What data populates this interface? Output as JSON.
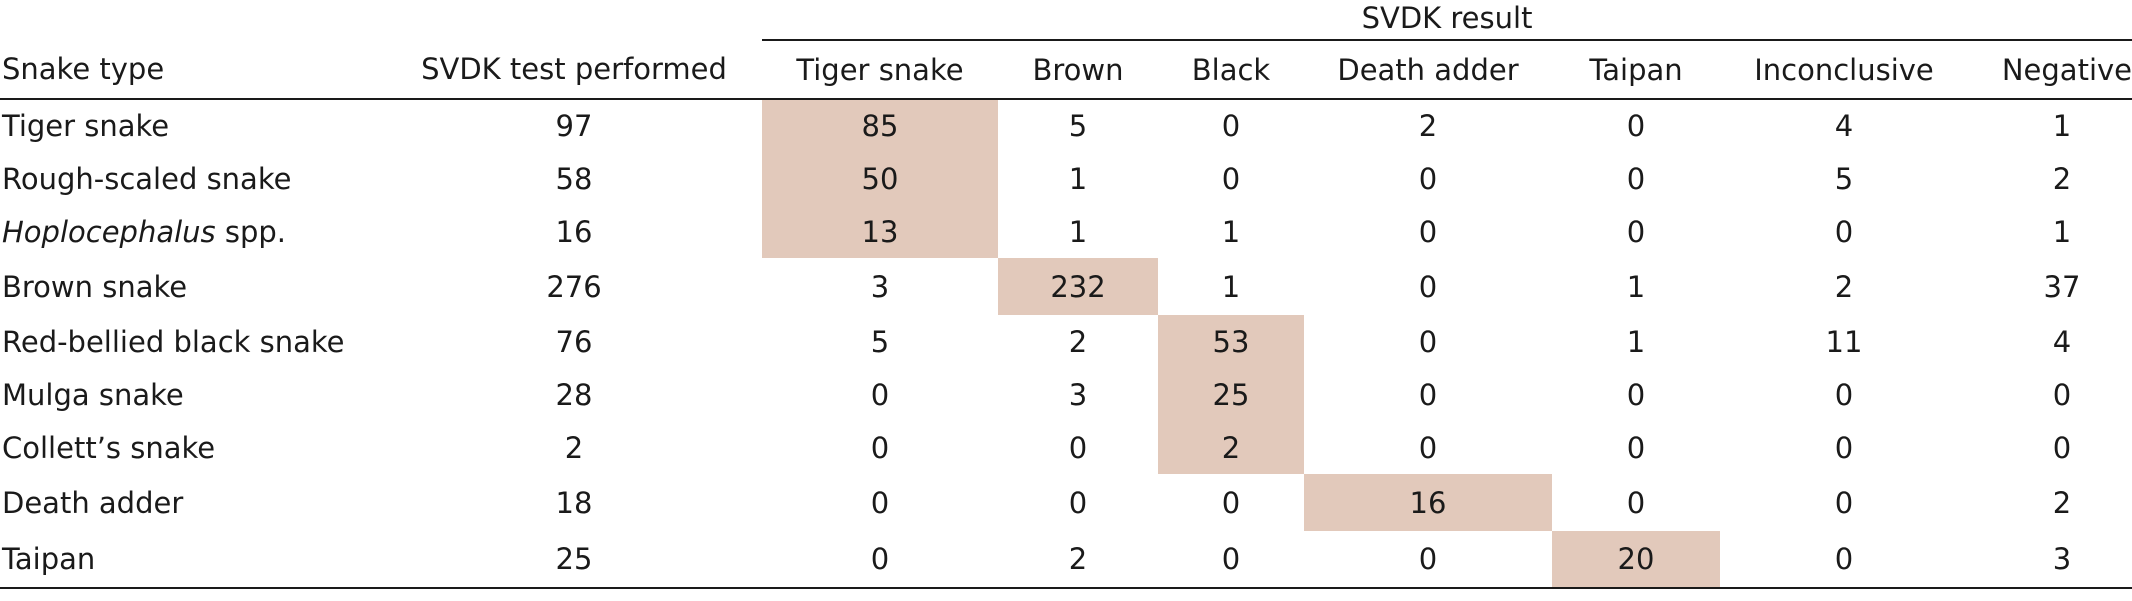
{
  "table": {
    "group_header": "SVDK result",
    "columns": [
      "Snake type",
      "SVDK test performed",
      "Tiger snake",
      "Brown",
      "Black",
      "Death adder",
      "Taipan",
      "Inconclusive",
      "Negative"
    ],
    "rows": [
      {
        "name": "Tiger snake",
        "name_suffix": "",
        "name_italic": false,
        "values": [
          "97",
          "85",
          "5",
          "0",
          "2",
          "0",
          "4",
          "1"
        ],
        "highlight_col": 1
      },
      {
        "name": "Rough-scaled snake",
        "name_suffix": "",
        "name_italic": false,
        "values": [
          "58",
          "50",
          "1",
          "0",
          "0",
          "0",
          "5",
          "2"
        ],
        "highlight_col": 1
      },
      {
        "name": "Hoplocephalus",
        "name_suffix": " spp.",
        "name_italic": true,
        "values": [
          "16",
          "13",
          "1",
          "1",
          "0",
          "0",
          "0",
          "1"
        ],
        "highlight_col": 1
      },
      {
        "name": "Brown snake",
        "name_suffix": "",
        "name_italic": false,
        "values": [
          "276",
          "3",
          "232",
          "1",
          "0",
          "1",
          "2",
          "37"
        ],
        "highlight_col": 2
      },
      {
        "name": "Red-bellied black snake",
        "name_suffix": "",
        "name_italic": false,
        "values": [
          "76",
          "5",
          "2",
          "53",
          "0",
          "1",
          "11",
          "4"
        ],
        "highlight_col": 3
      },
      {
        "name": "Mulga snake",
        "name_suffix": "",
        "name_italic": false,
        "values": [
          "28",
          "0",
          "3",
          "25",
          "0",
          "0",
          "0",
          "0"
        ],
        "highlight_col": 3
      },
      {
        "name": "Collett’s snake",
        "name_suffix": "",
        "name_italic": false,
        "values": [
          "2",
          "0",
          "0",
          "2",
          "0",
          "0",
          "0",
          "0"
        ],
        "highlight_col": 3
      },
      {
        "name": "Death adder",
        "name_suffix": "",
        "name_italic": false,
        "values": [
          "18",
          "0",
          "0",
          "0",
          "16",
          "0",
          "0",
          "2"
        ],
        "highlight_col": 4
      },
      {
        "name": "Taipan",
        "name_suffix": "",
        "name_italic": false,
        "values": [
          "25",
          "0",
          "2",
          "0",
          "0",
          "20",
          "0",
          "3"
        ],
        "highlight_col": 5
      }
    ],
    "highlight_color": "#e2c9bb"
  }
}
